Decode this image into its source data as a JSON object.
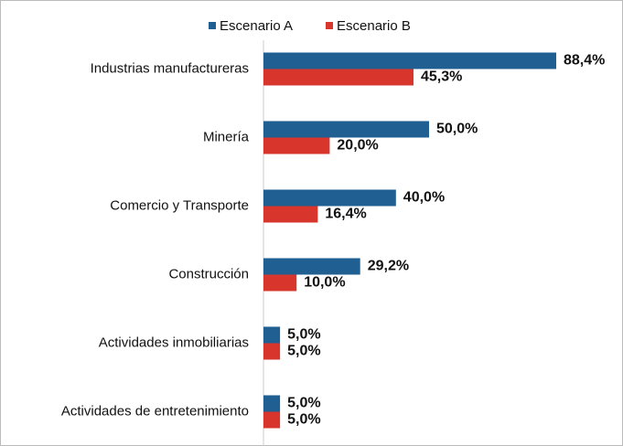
{
  "chart_data": {
    "type": "bar",
    "orientation": "horizontal",
    "categories": [
      "Industrias manufactureras",
      "Minería",
      "Comercio y Transporte",
      "Construcción",
      "Actividades inmobiliarias",
      "Actividades de entretenimiento"
    ],
    "series": [
      {
        "name": "Escenario A",
        "color": "#1f5f91",
        "values": [
          88.4,
          50.0,
          40.0,
          29.2,
          5.0,
          5.0
        ],
        "value_labels": [
          "88,4%",
          "50,0%",
          "40,0%",
          "29,2%",
          "5,0%",
          "5,0%"
        ]
      },
      {
        "name": "Escenario B",
        "color": "#d8352c",
        "values": [
          45.3,
          20.0,
          16.4,
          10.0,
          5.0,
          5.0
        ],
        "value_labels": [
          "45,3%",
          "20,0%",
          "16,4%",
          "10,0%",
          "5,0%",
          "5,0%"
        ]
      }
    ],
    "xlim": [
      0,
      100
    ],
    "legend": "top"
  }
}
